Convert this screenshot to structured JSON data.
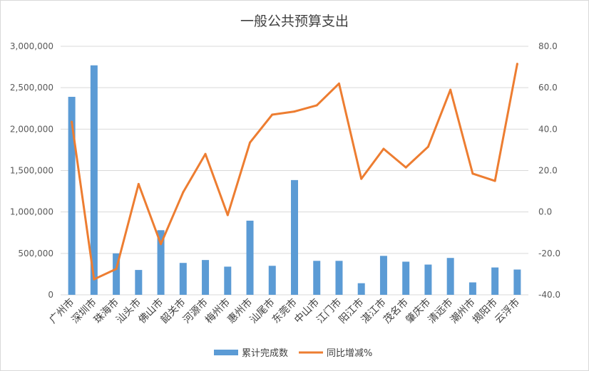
{
  "chart_data": {
    "type": "bar",
    "title": "一般公共预算支出",
    "categories": [
      "广州市",
      "深圳市",
      "珠海市",
      "汕头市",
      "佛山市",
      "韶关市",
      "河源市",
      "梅州市",
      "惠州市",
      "汕尾市",
      "东莞市",
      "中山市",
      "江门市",
      "阳江市",
      "湛江市",
      "茂名市",
      "肇庆市",
      "清远市",
      "潮州市",
      "揭阳市",
      "云浮市"
    ],
    "series": [
      {
        "name": "累计完成数",
        "kind": "bar",
        "axis": "left",
        "color": "#5B9BD5",
        "values": [
          2390000,
          2770000,
          500000,
          300000,
          780000,
          385000,
          420000,
          340000,
          895000,
          350000,
          1385000,
          410000,
          410000,
          140000,
          470000,
          400000,
          365000,
          445000,
          150000,
          330000,
          305000
        ]
      },
      {
        "name": "同比增减%",
        "kind": "line",
        "axis": "right",
        "color": "#ED7D31",
        "values": [
          43.5,
          -32.5,
          -27.5,
          13.5,
          -15.5,
          9.5,
          28.0,
          -1.5,
          33.5,
          47.0,
          48.5,
          51.5,
          62.0,
          16.0,
          30.5,
          21.5,
          31.5,
          59.0,
          18.5,
          15.0,
          71.5
        ]
      }
    ],
    "y_left": {
      "min": 0,
      "max": 3000000,
      "ticks": [
        "0",
        "500,000",
        "1,000,000",
        "1,500,000",
        "2,000,000",
        "2,500,000",
        "3,000,000"
      ]
    },
    "y_right": {
      "min": -40,
      "max": 80,
      "ticks": [
        "-40.0",
        "-20.0",
        "0.0",
        "20.0",
        "40.0",
        "60.0",
        "80.0"
      ]
    },
    "grid": true,
    "legend": "bottom"
  }
}
